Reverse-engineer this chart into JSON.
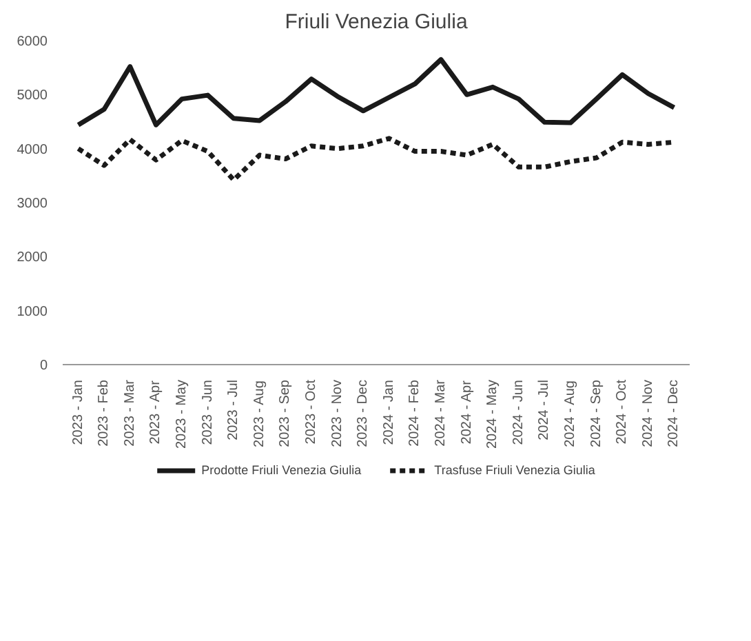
{
  "chart_data": {
    "type": "line",
    "title": "Friuli Venezia Giulia",
    "categories": [
      "2023 - Jan",
      "2023 - Feb",
      "2023 - Mar",
      "2023 - Apr",
      "2023 - May",
      "2023 - Jun",
      "2023 - Jul",
      "2023 - Aug",
      "2023 - Sep",
      "2023 - Oct",
      "2023 - Nov",
      "2023 - Dec",
      "2024 - Jan",
      "2024 - Feb",
      "2024 - Mar",
      "2024 - Apr",
      "2024 - May",
      "2024 - Jun",
      "2024 - Jul",
      "2024 - Aug",
      "2024 - Sep",
      "2024 - Oct",
      "2024 - Nov",
      "2024 - Dec"
    ],
    "series": [
      {
        "name": "Prodotte Friuli Venezia Giulia",
        "color": "#1a1a1a",
        "line_style": "solid",
        "values": [
          4440,
          4730,
          5520,
          4440,
          4920,
          4990,
          4560,
          4520,
          4870,
          5290,
          4970,
          4700,
          4950,
          5200,
          5650,
          5000,
          5140,
          4920,
          4490,
          4480,
          4920,
          5370,
          5020,
          4760
        ]
      },
      {
        "name": "Trasfuse Friuli Venezia Giulia",
        "color": "#1a1a1a",
        "line_style": "dashed",
        "values": [
          4000,
          3690,
          4170,
          3790,
          4150,
          3950,
          3420,
          3880,
          3810,
          4050,
          4000,
          4050,
          4190,
          3950,
          3950,
          3880,
          4080,
          3660,
          3660,
          3760,
          3830,
          4120,
          4080,
          4120
        ]
      }
    ],
    "ylim": [
      0,
      6000
    ],
    "yticks": [
      0,
      1000,
      2000,
      3000,
      4000,
      5000,
      6000
    ],
    "grid": false,
    "legend": "bottom"
  }
}
